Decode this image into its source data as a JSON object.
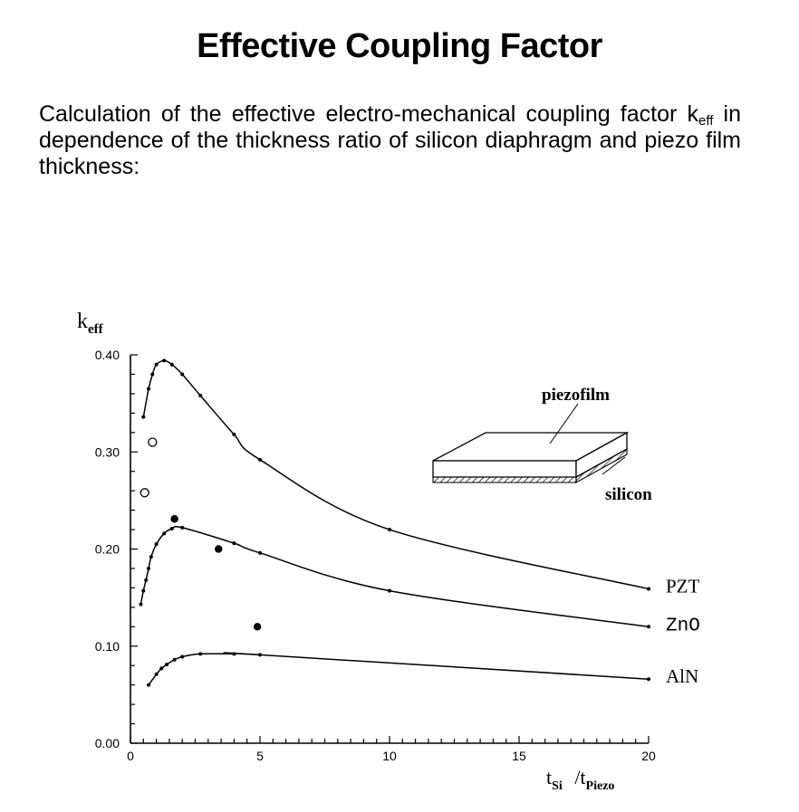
{
  "title": "Effective Coupling Factor",
  "intro": {
    "before": "Calculation of the effective electro-mechanical coupling factor k",
    "sub": "eff",
    "after": " in dependence of the thickness ratio of silicon diaphragm and piezo film thickness:"
  },
  "chart_data": {
    "type": "line",
    "ylabel": "keff",
    "xlabel": "tSi /tPiezo",
    "xlim": [
      0,
      20
    ],
    "ylim": [
      0,
      0.4
    ],
    "xticks": [
      0,
      5,
      10,
      15,
      20
    ],
    "yticks": [
      0.0,
      0.1,
      0.2,
      0.3,
      0.4
    ],
    "ytick_labels": [
      "0.00",
      "0.10",
      "0.20",
      "0.30",
      "0.40"
    ],
    "grid": false,
    "series": [
      {
        "name": "PZT",
        "x": [
          0.5,
          0.7,
          0.85,
          1.0,
          1.3,
          1.6,
          2.0,
          2.7,
          4.0,
          5.0,
          10.0,
          20.0
        ],
        "y": [
          0.336,
          0.365,
          0.38,
          0.39,
          0.394,
          0.39,
          0.38,
          0.358,
          0.318,
          0.292,
          0.22,
          0.159
        ]
      },
      {
        "name": "ZnO",
        "x": [
          0.4,
          0.5,
          0.6,
          0.7,
          0.8,
          1.0,
          1.3,
          1.6,
          2.0,
          4.0,
          5.0,
          10.0,
          20.0
        ],
        "y": [
          0.143,
          0.157,
          0.168,
          0.18,
          0.192,
          0.205,
          0.216,
          0.221,
          0.222,
          0.206,
          0.196,
          0.157,
          0.12
        ]
      },
      {
        "name": "AlN",
        "x": [
          0.7,
          1.0,
          1.2,
          1.4,
          1.7,
          2.0,
          2.7,
          4.0,
          5.0,
          20.0
        ],
        "y": [
          0.06,
          0.071,
          0.077,
          0.081,
          0.086,
          0.089,
          0.092,
          0.092,
          0.091,
          0.066
        ]
      }
    ],
    "open_points": [
      {
        "x": 0.55,
        "y": 0.258
      },
      {
        "x": 0.85,
        "y": 0.31
      }
    ],
    "filled_points": [
      {
        "x": 1.7,
        "y": 0.231
      },
      {
        "x": 3.4,
        "y": 0.2
      },
      {
        "x": 4.9,
        "y": 0.12
      }
    ],
    "inset": {
      "top_label": "piezofilm",
      "bottom_label": "silicon"
    }
  },
  "colors": {
    "line": "#000000",
    "background": "#ffffff"
  }
}
